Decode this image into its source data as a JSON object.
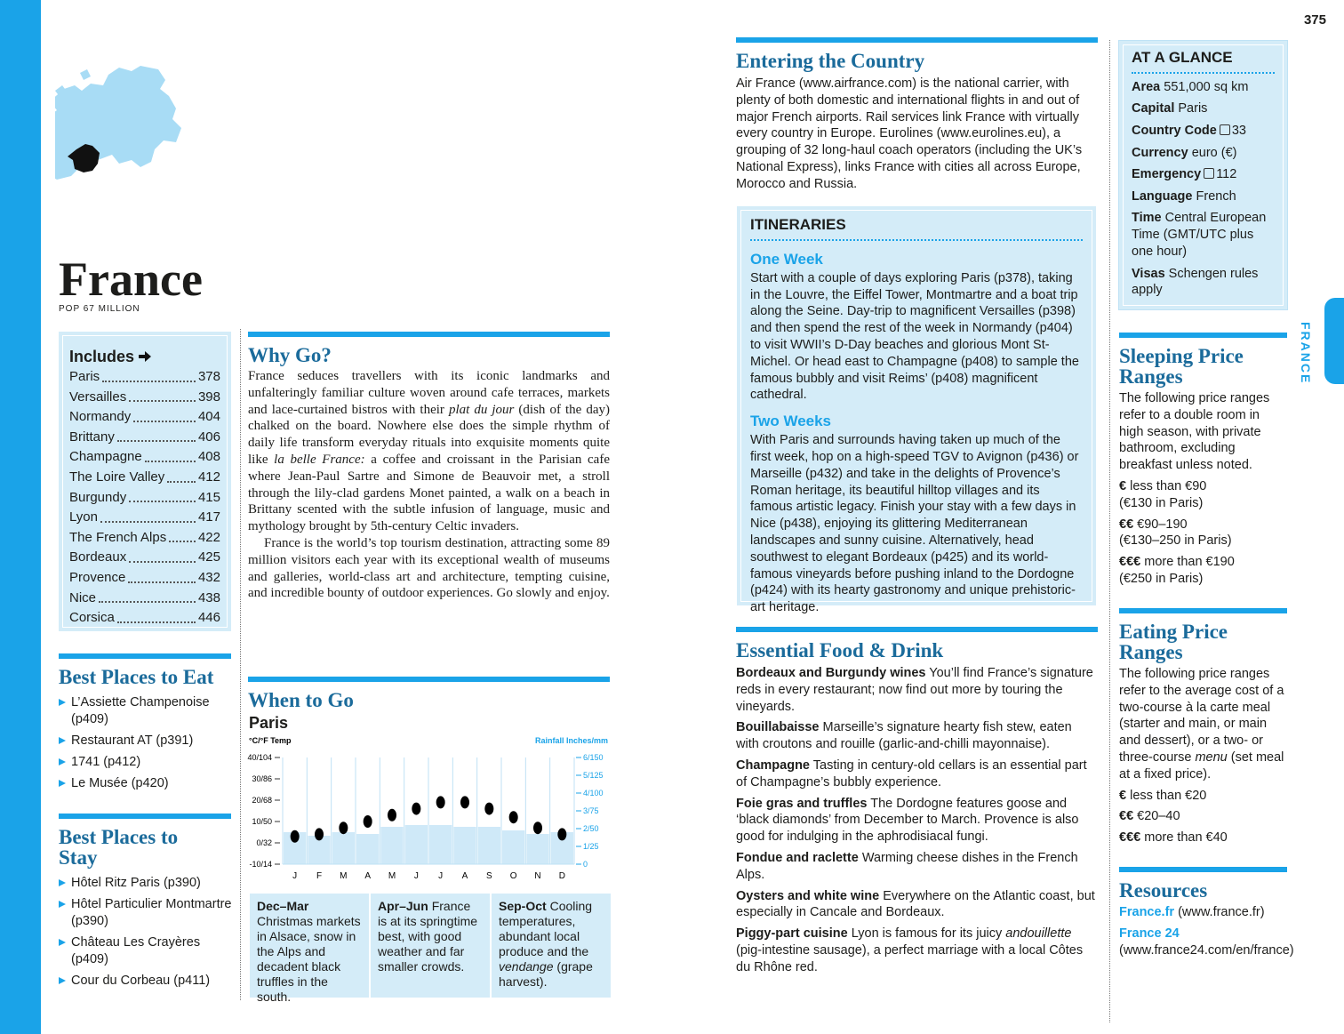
{
  "page_number": "375",
  "side_tab": "FRANCE",
  "title": "France",
  "subtitle": "POP 67 MILLION",
  "includes": {
    "heading": "Includes",
    "items": [
      {
        "name": "Paris",
        "page": "378"
      },
      {
        "name": "Versailles",
        "page": "398"
      },
      {
        "name": "Normandy",
        "page": "404"
      },
      {
        "name": "Brittany",
        "page": "406"
      },
      {
        "name": "Champagne",
        "page": "408"
      },
      {
        "name": "The Loire Valley",
        "page": "412"
      },
      {
        "name": "Burgundy",
        "page": "415"
      },
      {
        "name": "Lyon",
        "page": "417"
      },
      {
        "name": "The French Alps",
        "page": "422"
      },
      {
        "name": "Bordeaux",
        "page": "425"
      },
      {
        "name": "Provence",
        "page": "432"
      },
      {
        "name": "Nice",
        "page": "438"
      },
      {
        "name": "Corsica",
        "page": "446"
      }
    ]
  },
  "best_eat": {
    "title": "Best Places to Eat",
    "items": [
      "L’Assiette Champenoise (p409)",
      "Restaurant AT (p391)",
      "1741 (p412)",
      "Le Musée (p420)"
    ]
  },
  "best_stay": {
    "title": "Best Places to Stay",
    "items": [
      "Hôtel Ritz Paris (p390)",
      "Hôtel Particulier Montmartre (p390)",
      "Château Les Crayères (p409)",
      "Cour du Corbeau (p411)"
    ]
  },
  "why_go": {
    "title": "Why Go?",
    "paragraphs": [
      [
        "France seduces travellers with its iconic landmarks and unfalteringly familiar culture woven around cafe terraces, markets and lace-curtained bistros with their ",
        {
          "i": "plat du jour"
        },
        " (dish of the day) chalked on the board. Nowhere else does the simple rhythm of daily life transform everyday rituals into exquisite moments quite like ",
        {
          "i": "la belle France:"
        },
        " a coffee and croissant in the Parisian cafe where Jean-Paul Sartre and Simone de Beauvoir met, a stroll through the lily-clad gardens Monet painted, a walk on a beach in Brittany scented with the subtle infusion of language, music and mythology brought by 5th-century Celtic invaders."
      ],
      [
        "France is the world’s top tourism destination, attracting some 89 million visitors each year with its exceptional wealth of museums and galleries, world-class art and architecture, tempting cuisine, and incredible bounty of outdoor experiences. Go slowly and enjoy."
      ]
    ]
  },
  "when_to_go": {
    "title": "When to Go",
    "seasons": [
      {
        "title": "Dec–Mar",
        "text": [
          "Christmas markets in Alsace, snow in the Alps and decadent black truffles in the south."
        ]
      },
      {
        "title": "Apr–Jun",
        "text": [
          "France is at its springtime best, with good weather and far smaller crowds."
        ]
      },
      {
        "title": "Sep-Oct",
        "text": [
          "Cooling temperatures, abundant local produce and the ",
          {
            "i": "vendange"
          },
          " (grape harvest)."
        ]
      }
    ]
  },
  "chart_data": {
    "type": "bar",
    "title": "Paris",
    "ylabel": "°C/°F Temp",
    "y2label": "Rainfall Inches/mm",
    "categories": [
      "J",
      "F",
      "M",
      "A",
      "M",
      "J",
      "J",
      "A",
      "S",
      "O",
      "N",
      "D"
    ],
    "series": [
      {
        "type": "bar",
        "axis": "y2",
        "color": "#cfe9f8",
        "values": [
          1.8,
          1.6,
          1.8,
          1.7,
          2.1,
          2.2,
          2.2,
          2.1,
          2.1,
          1.9,
          1.7,
          1.8
        ]
      },
      {
        "type": "scatter",
        "color": "#000000",
        "values": [
          3,
          4,
          7,
          10,
          13,
          16,
          19,
          19,
          16,
          12,
          7,
          4
        ]
      }
    ],
    "ylim": [
      -10,
      40
    ],
    "yticks": [
      {
        "value": 40,
        "label": "40/104"
      },
      {
        "value": 30,
        "label": "30/86"
      },
      {
        "value": 20,
        "label": "20/68"
      },
      {
        "value": 10,
        "label": "10/50"
      },
      {
        "value": 0,
        "label": "0/32"
      },
      {
        "value": -10,
        "label": "-10/14"
      }
    ],
    "y2lim": [
      0,
      6
    ],
    "y2ticks": [
      {
        "value": 6,
        "label": "6/150"
      },
      {
        "value": 5,
        "label": "5/125"
      },
      {
        "value": 4,
        "label": "4/100"
      },
      {
        "value": 3,
        "label": "3/75"
      },
      {
        "value": 2,
        "label": "2/50"
      },
      {
        "value": 1,
        "label": "1/25"
      },
      0
    ],
    "grid": true
  },
  "entering": {
    "title": "Entering the Country",
    "text": "Air France (www.airfrance.com) is the national carrier, with plenty of both domestic and international flights in and out of major French airports. Rail services link France with virtually every country in Europe. Eurolines (www.eurolines.eu), a grouping of 32 long-haul coach operators (including the UK’s National Express), links France with cities all across Europe, Morocco and Russia."
  },
  "itineraries": {
    "heading": "ITINERARIES",
    "sections": [
      {
        "title": "One Week",
        "text": "Start with a couple of days exploring Paris (p378), taking in the Louvre, the Eiffel Tower, Montmartre and a boat trip along the Seine. Day-trip to magnificent Versailles (p398) and then spend the rest of the week in Normandy (p404) to visit WWII’s D-Day beaches and glorious Mont St-Michel. Or head east to Champagne (p408) to sample the famous bubbly and visit Reims’ (p408) magnificent cathedral."
      },
      {
        "title": "Two Weeks",
        "text": "With Paris and surrounds having taken up much of the first week, hop on a high-speed TGV to Avignon (p436) or Marseille (p432) and take in the delights of Provence’s Roman heritage, its beautiful hilltop villages and its famous artistic legacy. Finish your stay with a few days in Nice (p438), enjoying its glittering Mediterranean landscapes and sunny cuisine. Alternatively, head southwest to elegant Bordeaux (p425) and its world-famous vineyards before pushing inland to the Dordogne (p424) with its hearty gastronomy and unique prehistoric-art heritage."
      }
    ]
  },
  "food": {
    "title": "Essential Food & Drink",
    "items": [
      {
        "term": "Bordeaux and Burgundy wines",
        "desc": [
          "You’ll find France’s signature reds in every restaurant; now find out more by touring the vineyards."
        ]
      },
      {
        "term": "Bouillabaisse",
        "desc": [
          "Marseille’s signature hearty fish stew, eaten with croutons and rouille (garlic-and-chilli mayonnaise)."
        ]
      },
      {
        "term": "Champagne",
        "desc": [
          "Tasting in century-old cellars is an essential part of Champagne’s bubbly experience."
        ]
      },
      {
        "term": "Foie gras and truffles",
        "desc": [
          "The Dordogne features goose and ‘black diamonds’ from December to March. Provence is also good for indulging in the aphrodisiacal fungi."
        ]
      },
      {
        "term": "Fondue and raclette",
        "desc": [
          "Warming cheese dishes in the French Alps."
        ]
      },
      {
        "term": "Oysters and white wine",
        "desc": [
          "Everywhere on the Atlantic coast, but especially in Cancale and Bordeaux."
        ]
      },
      {
        "term": "Piggy-part cuisine",
        "desc": [
          "Lyon is famous for its juicy ",
          {
            "i": "andouillette"
          },
          " (pig-intestine sausage), a perfect marriage with a local Côtes du Rhône red."
        ]
      }
    ]
  },
  "at_a_glance": {
    "heading": "AT A GLANCE",
    "items": [
      {
        "term": "Area",
        "value": "551,000 sq km"
      },
      {
        "term": "Capital",
        "value": "Paris"
      },
      {
        "term": "Country Code",
        "value": "33",
        "icon": "phone"
      },
      {
        "term": "Currency",
        "value": "euro (€)"
      },
      {
        "term": "Emergency",
        "value": "112",
        "icon": "phone"
      },
      {
        "term": "Language",
        "value": "French"
      },
      {
        "term": "Time",
        "value": "Central European Time (GMT/UTC plus one hour)"
      },
      {
        "term": "Visas",
        "value": "Schengen rules apply"
      }
    ]
  },
  "sleeping": {
    "title": "Sleeping Price Ranges",
    "intro": [
      "The following price ranges refer to a double room in high season, with private bathroom, excluding breakfast unless noted."
    ],
    "items": [
      {
        "symbol": "€",
        "text": "less than €90",
        "note": "(€130 in Paris)"
      },
      {
        "symbol": "€€",
        "text": "€90–190",
        "note": "(€130–250 in Paris)"
      },
      {
        "symbol": "€€€",
        "text": "more than €190",
        "note": "(€250 in Paris)"
      }
    ]
  },
  "eating": {
    "title": "Eating Price Ranges",
    "intro": [
      "The following price ranges refer to the average cost of a two-course à la carte meal (starter and main, or main and dessert), or a two- or three-course ",
      {
        "i": "menu"
      },
      " (set meal at a fixed price)."
    ],
    "items": [
      {
        "symbol": "€",
        "text": "less than €20"
      },
      {
        "symbol": "€€",
        "text": "€20–40"
      },
      {
        "symbol": "€€€",
        "text": "more than €40"
      }
    ]
  },
  "resources": {
    "title": "Resources",
    "items": [
      {
        "name": "France.fr",
        "url": "(www.france.fr)"
      },
      {
        "name": "France 24",
        "url": "(www.france24.com/en/france)"
      }
    ]
  }
}
